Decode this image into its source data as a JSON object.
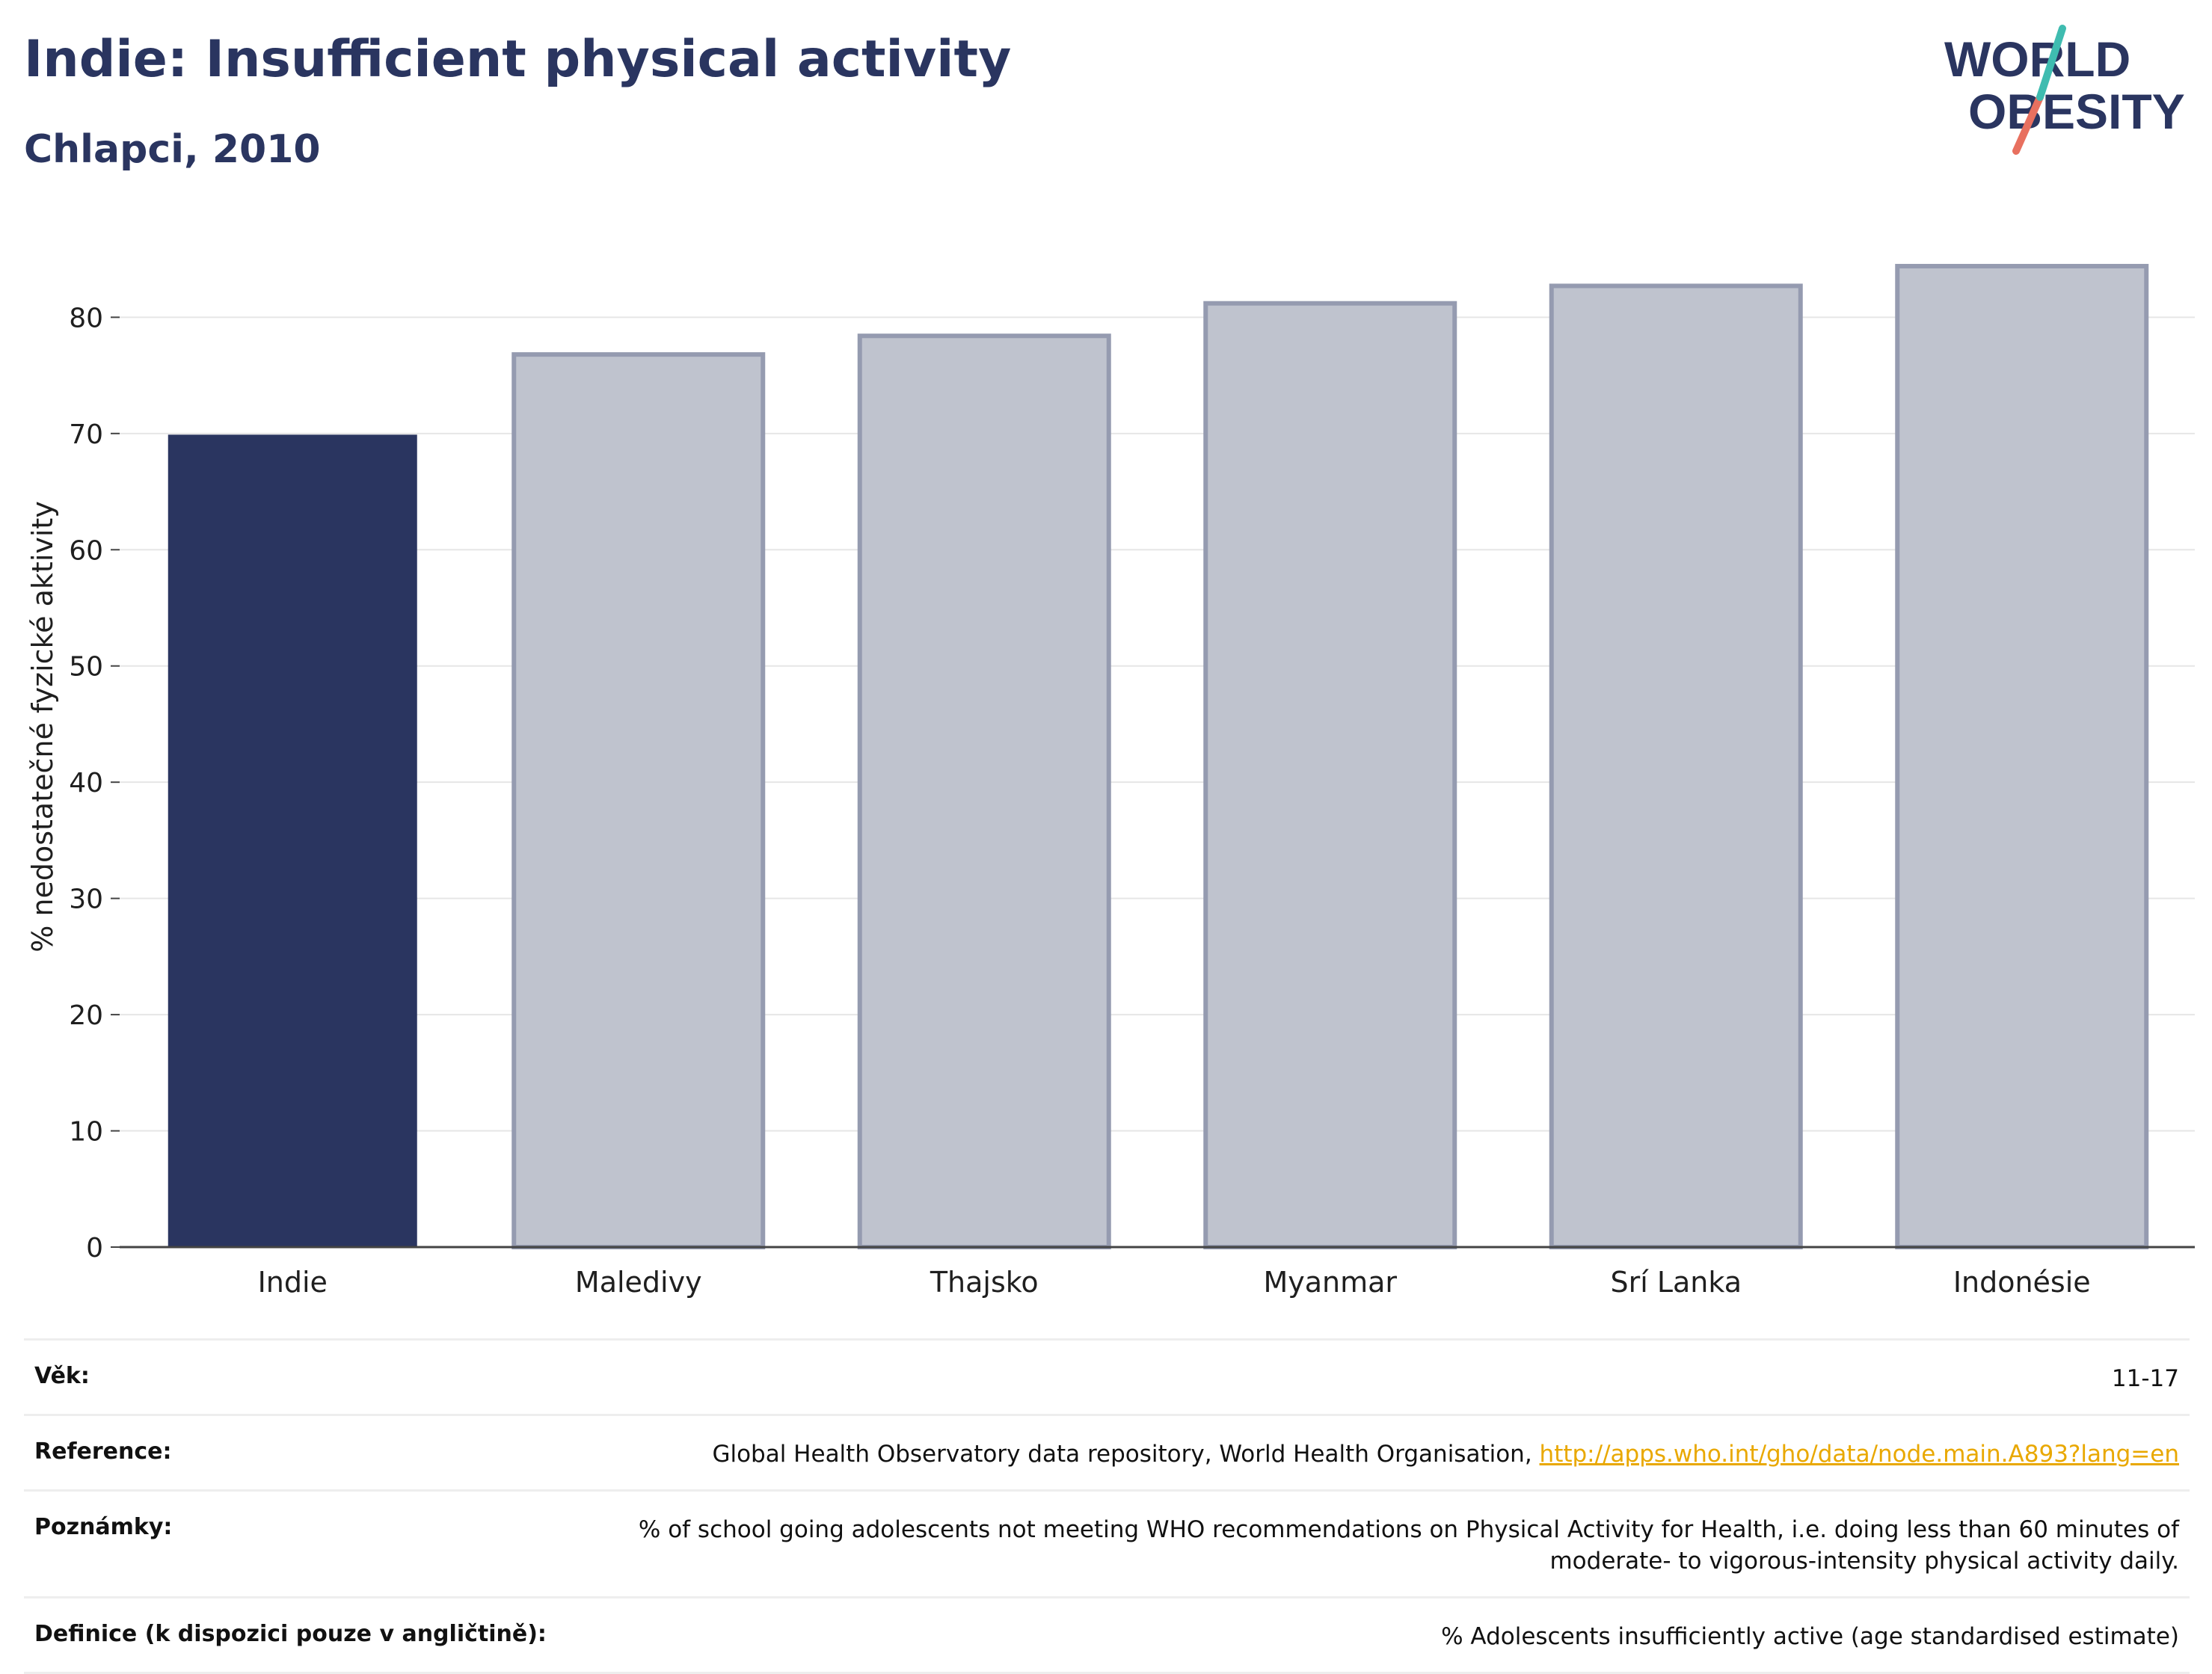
{
  "header": {
    "title": "Indie: Insufficient physical activity",
    "subtitle": "Chlapci, 2010"
  },
  "logo": {
    "line1": "WORLD",
    "line2": "OBESITY"
  },
  "chart_data": {
    "type": "bar",
    "title": "Indie: Insufficient physical activity",
    "subtitle": "Chlapci, 2010",
    "ylabel": "% nedostatečné fyzické aktivity",
    "xlabel": "",
    "categories": [
      "Indie",
      "Maledivy",
      "Thajsko",
      "Myanmar",
      "Srí Lanka",
      "Indonésie"
    ],
    "values": [
      69.9,
      76.8,
      78.4,
      81.2,
      82.7,
      84.4
    ],
    "highlight_index": 0,
    "ylim": [
      0,
      88
    ],
    "yticks": [
      0,
      10,
      20,
      30,
      40,
      50,
      60,
      70,
      80
    ],
    "grid": true,
    "colors": {
      "highlight": "#2a3560",
      "other_fill": "#bfc3ce",
      "other_stroke": "#959bb0"
    }
  },
  "info": {
    "age_label": "Věk:",
    "age_value": "11-17",
    "reference_label": "Reference:",
    "reference_text": "Global Health Observatory data repository, World Health Organisation, ",
    "reference_link": "http://apps.who.int/gho/data/node.main.A893?lang=en",
    "notes_label": "Poznámky:",
    "notes_line1": "% of school going adolescents not meeting WHO recommendations on Physical Activity for Health, i.e. doing less than 60 minutes of",
    "notes_line2": "moderate- to vigorous-intensity physical activity daily.",
    "definition_label": "Definice (k dispozici pouze v angličtině):",
    "definition_value": "% Adolescents insufficiently active (age standardised estimate)"
  }
}
